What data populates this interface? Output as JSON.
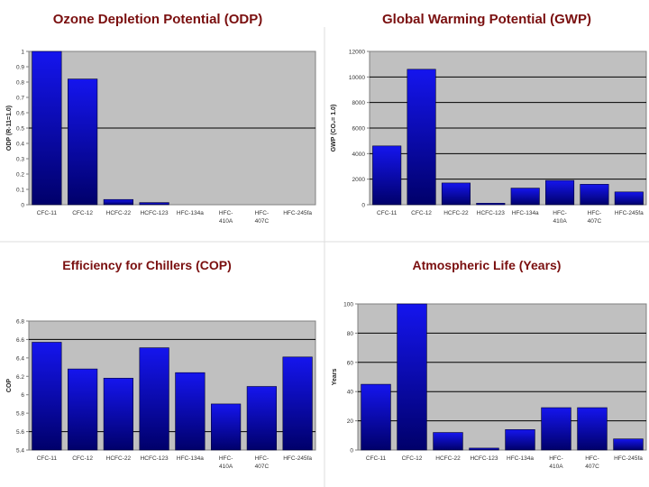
{
  "chart_data": [
    {
      "type": "bar",
      "title": "Ozone Depletion Potential (ODP)",
      "ylabel": "ODP (R-11=1.0)",
      "xlabel": "",
      "categories": [
        "CFC-11",
        "CFC-12",
        "HCFC-22",
        "HCFC-123",
        "HFC-134a",
        "HFC-410A",
        "HFC-407C",
        "HFC-245fa"
      ],
      "tick_labels": [
        "CFC-11",
        "CFC-12",
        "HCFC-22",
        "HCFC-123",
        "HFC-134a",
        "HFC- 410A",
        "HFC- 407C",
        "HFC-245fa"
      ],
      "values": [
        1.0,
        0.82,
        0.034,
        0.014,
        0,
        0,
        0,
        0
      ],
      "ylim": [
        0,
        1.0
      ],
      "yticks": [
        0,
        0.1,
        0.2,
        0.3,
        0.4,
        0.5,
        0.6,
        0.7,
        0.8,
        0.9,
        1
      ],
      "ytick_labels": [
        "0",
        "0.1",
        "0.2",
        "0.3",
        "0.4",
        "0.5",
        "0.6",
        "0.7",
        "0.8",
        "0.9",
        "1"
      ],
      "gridlines": [
        0.5
      ],
      "legend": "none"
    },
    {
      "type": "bar",
      "title": "Global Warming Potential (GWP)",
      "ylabel": "GWP (CO₂= 1.0)",
      "xlabel": "",
      "categories": [
        "CFC-11",
        "CFC-12",
        "HCFC-22",
        "HCFC-123",
        "HFC-134a",
        "HFC-410A",
        "HFC-407C",
        "HFC-245fa"
      ],
      "tick_labels": [
        "CFC-11",
        "CFC-12",
        "HCFC-22",
        "HCFC-123",
        "HFC-134a",
        "HFC- 410A",
        "HFC- 407C",
        "HFC-245fa"
      ],
      "values": [
        4600,
        10600,
        1700,
        120,
        1300,
        1900,
        1600,
        1000
      ],
      "ylim": [
        0,
        12000
      ],
      "yticks": [
        0,
        2000,
        4000,
        6000,
        8000,
        10000,
        12000
      ],
      "ytick_labels": [
        "0",
        "2000",
        "4000",
        "6000",
        "8000",
        "10000",
        "12000"
      ],
      "gridlines": [
        2000,
        4000,
        6000,
        8000,
        10000
      ],
      "legend": "none"
    },
    {
      "type": "bar",
      "title": "Efficiency for Chillers (COP)",
      "ylabel": "COP",
      "xlabel": "",
      "categories": [
        "CFC-11",
        "CFC-12",
        "HCFC-22",
        "HCFC-123",
        "HFC-134a",
        "HFC-410A",
        "HFC-407C",
        "HFC-245fa"
      ],
      "tick_labels": [
        "CFC-11",
        "CFC-12",
        "HCFC-22",
        "HCFC-123",
        "HFC-134a",
        "HFC- 410A",
        "HFC- 407C",
        "HFC-245fa"
      ],
      "values": [
        6.57,
        6.28,
        6.18,
        6.51,
        6.24,
        5.9,
        6.09,
        6.41
      ],
      "ylim": [
        5.4,
        6.8
      ],
      "yticks": [
        5.4,
        5.6,
        5.8,
        6.0,
        6.2,
        6.4,
        6.6,
        6.8
      ],
      "ytick_labels": [
        "5.4",
        "5.6",
        "5.8",
        "6",
        "6.2",
        "6.4",
        "6.6",
        "6.8"
      ],
      "gridlines": [
        5.6,
        6.6
      ],
      "legend": "none"
    },
    {
      "type": "bar",
      "title": "Atmospheric Life (Years)",
      "ylabel": "Years",
      "xlabel": "",
      "categories": [
        "CFC-11",
        "CFC-12",
        "HCFC-22",
        "HCFC-123",
        "HFC-134a",
        "HFC-410A",
        "HFC-407C",
        "HFC-245fa"
      ],
      "tick_labels": [
        "CFC-11",
        "CFC-12",
        "HCFC-22",
        "HCFC-123",
        "HFC-134a",
        "HFC- 410A",
        "HFC- 407C",
        "HFC-245fa"
      ],
      "values": [
        45,
        100,
        12,
        1.3,
        14,
        29,
        29,
        7.6
      ],
      "ylim": [
        0,
        100
      ],
      "yticks": [
        0,
        20,
        40,
        60,
        80,
        100
      ],
      "ytick_labels": [
        "0",
        "20",
        "40",
        "60",
        "80",
        "100"
      ],
      "gridlines": [
        20,
        40,
        60,
        80
      ],
      "legend": "none"
    }
  ],
  "colors": {
    "plot_bg": "#c0c0c0",
    "bar_top": "#1515ee",
    "bar_bottom": "#00006a",
    "title_text": "#7a0f0f",
    "axis_text": "#333333",
    "gridline": "#000000"
  }
}
